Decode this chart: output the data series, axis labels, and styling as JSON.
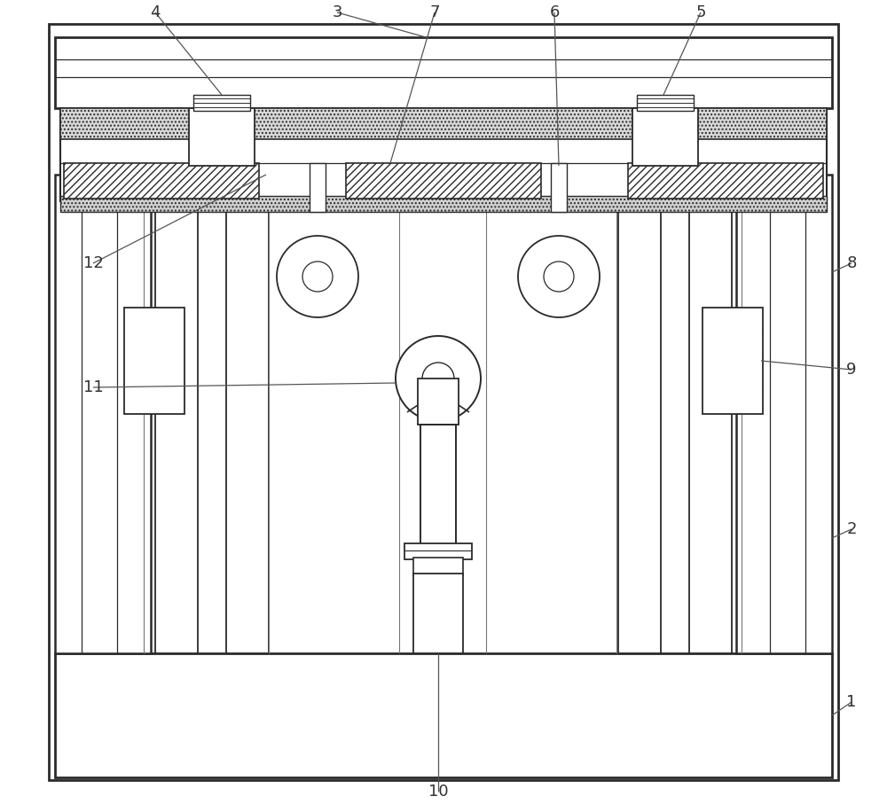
{
  "bg": "#ffffff",
  "lc": "#2a2a2a",
  "fig_w": 10.0,
  "fig_h": 9.07
}
